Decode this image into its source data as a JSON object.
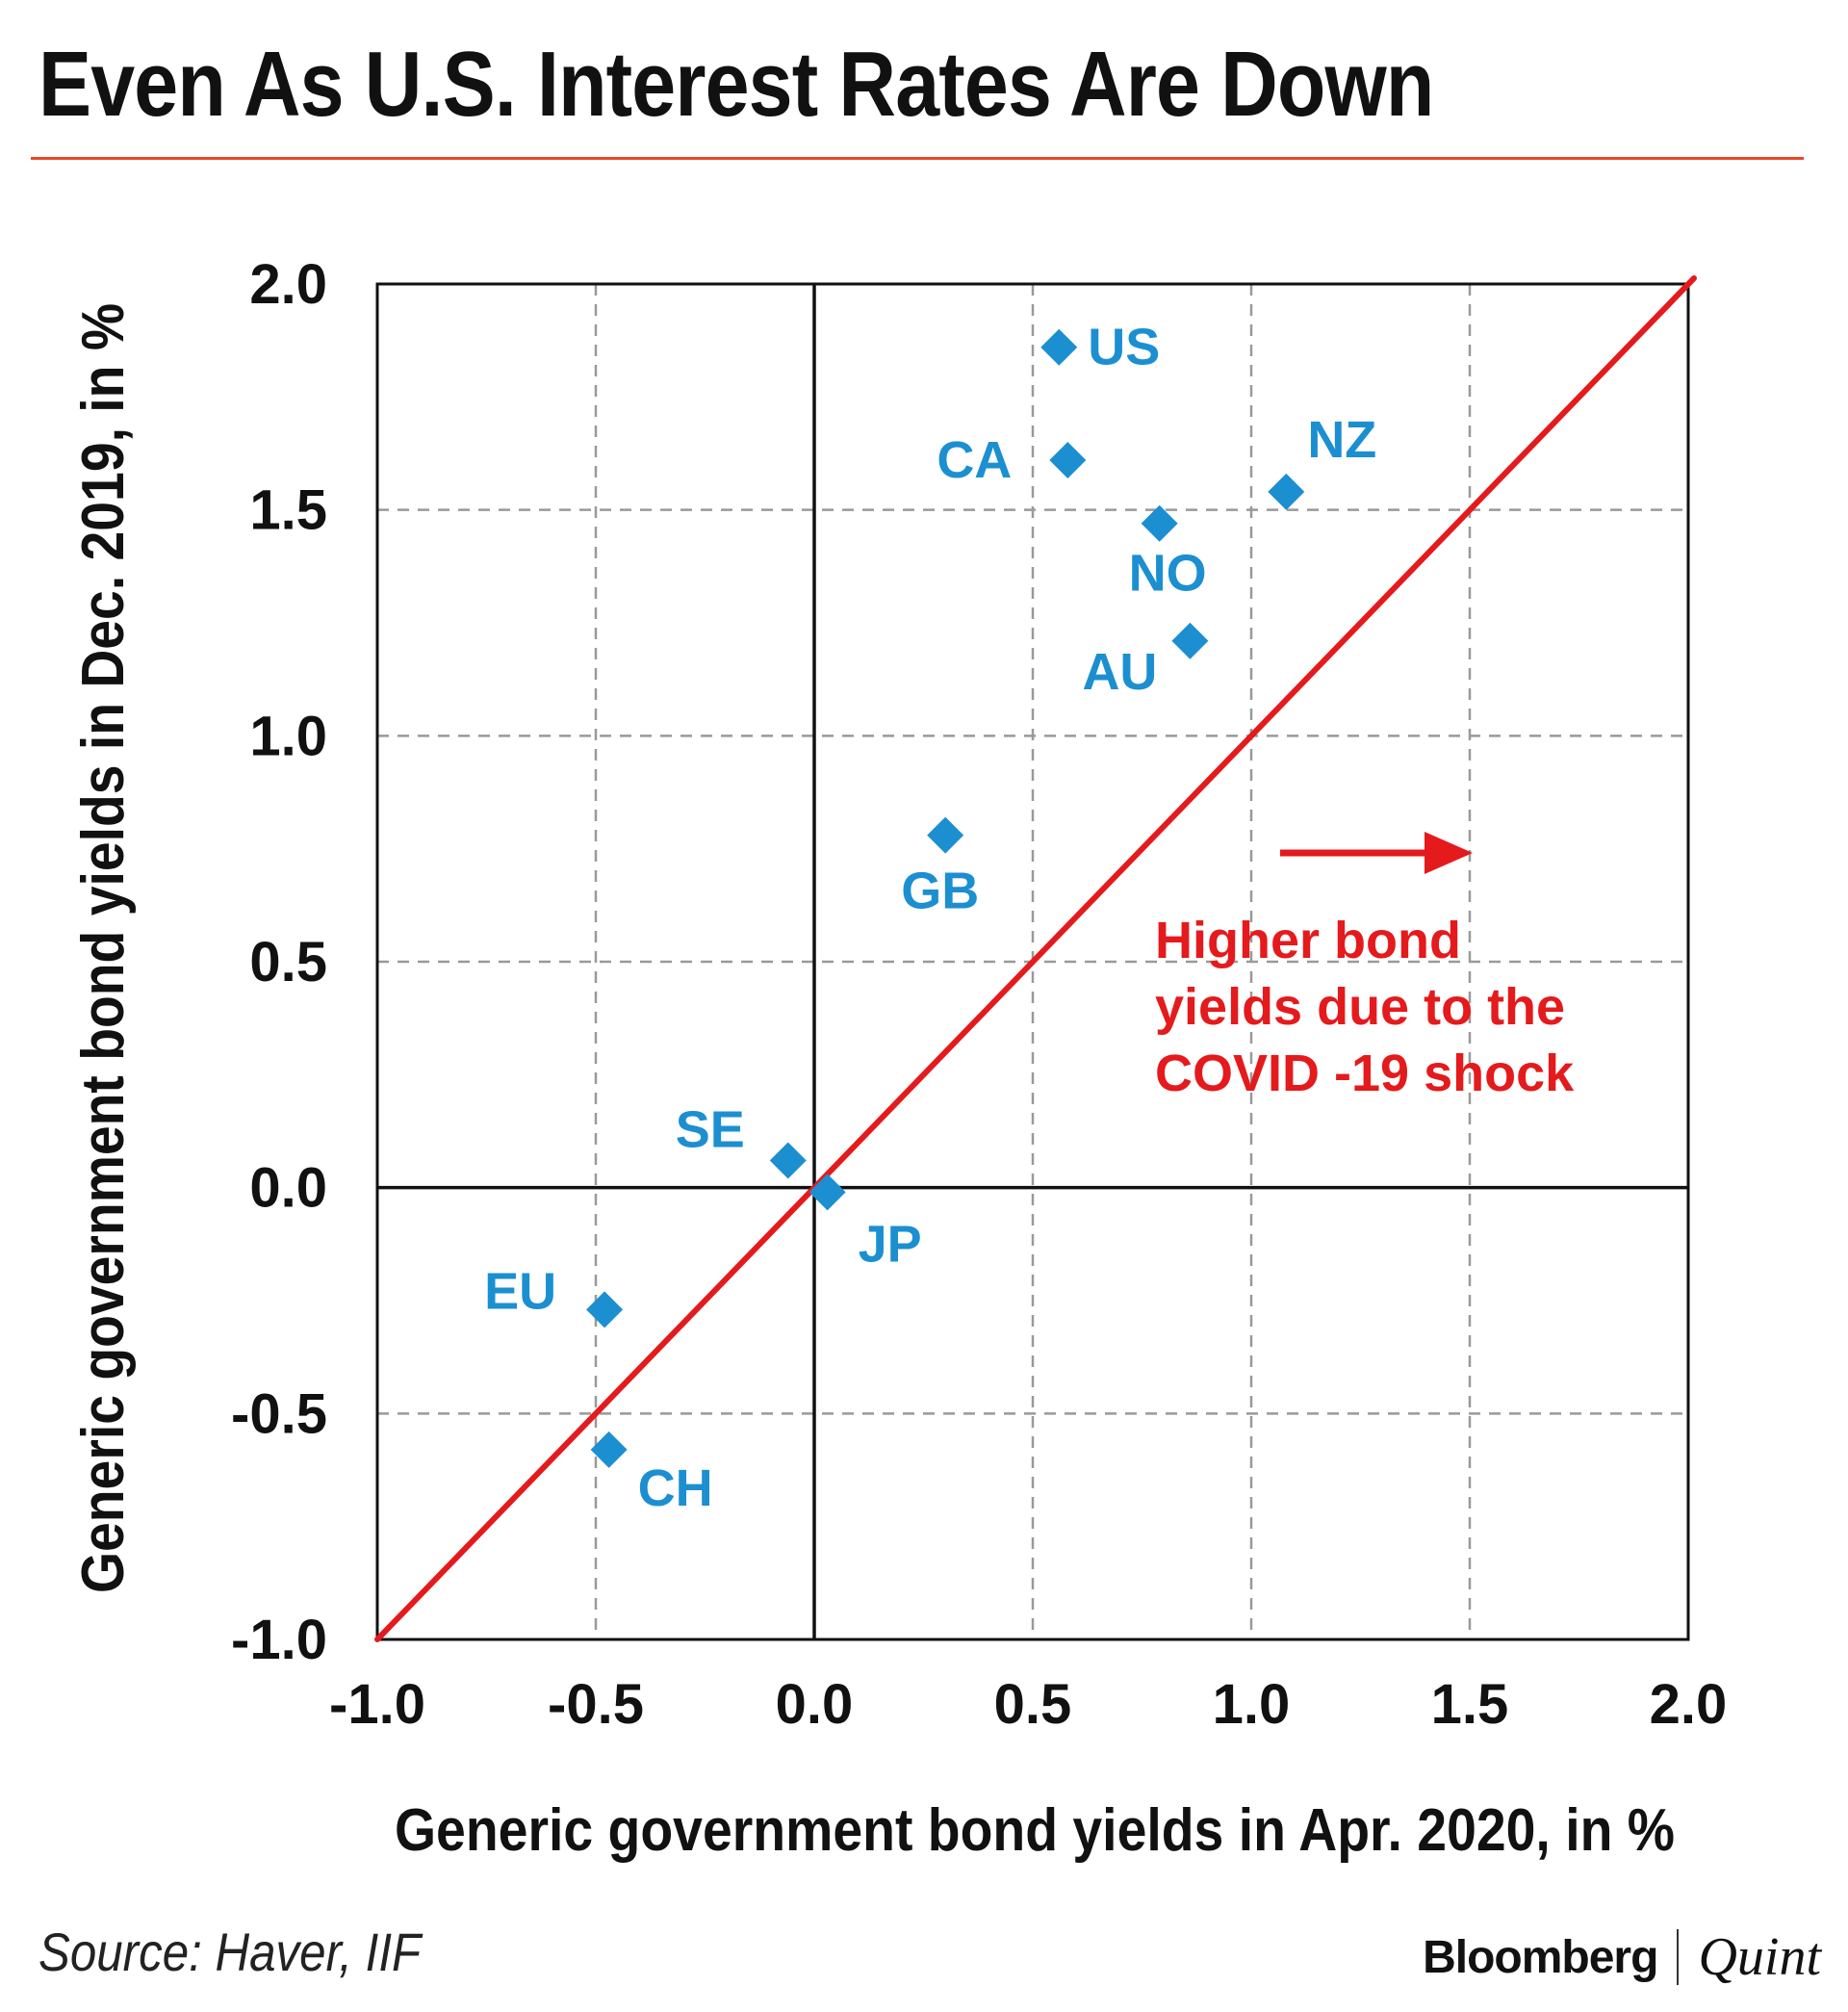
{
  "header": {
    "title": "Even As U.S. Interest Rates Are Down"
  },
  "chart_data": {
    "type": "scatter",
    "title": "Even As U.S. Interest Rates Are Down",
    "xlabel": "Generic government bond yields in Apr. 2020, in %",
    "ylabel": "Generic government bond yields in Dec. 2019, in %",
    "xlim": [
      -1.0,
      2.0
    ],
    "ylim": [
      -1.0,
      2.0
    ],
    "xticks": [
      "-1.0",
      "-0.5",
      "0.0",
      "0.5",
      "1.0",
      "1.5",
      "2.0"
    ],
    "yticks": [
      "-1.0",
      "-0.5",
      "0.0",
      "0.5",
      "1.0",
      "1.5",
      "2.0"
    ],
    "grid": true,
    "reference_line": {
      "label": "45-degree line",
      "from": [
        -1.0,
        -1.0
      ],
      "to": [
        2.0,
        2.0
      ],
      "color": "#e41a1c"
    },
    "series": [
      {
        "name": "Countries",
        "color": "#1c8fd1",
        "points": [
          {
            "label": "US",
            "x": 0.56,
            "y": 1.86
          },
          {
            "label": "CA",
            "x": 0.58,
            "y": 1.61
          },
          {
            "label": "NZ",
            "x": 1.08,
            "y": 1.54
          },
          {
            "label": "NO",
            "x": 0.79,
            "y": 1.47
          },
          {
            "label": "AU",
            "x": 0.86,
            "y": 1.21
          },
          {
            "label": "GB",
            "x": 0.3,
            "y": 0.78
          },
          {
            "label": "SE",
            "x": -0.06,
            "y": 0.06
          },
          {
            "label": "JP",
            "x": 0.03,
            "y": -0.01
          },
          {
            "label": "EU",
            "x": -0.48,
            "y": -0.27
          },
          {
            "label": "CH",
            "x": -0.47,
            "y": -0.58
          }
        ]
      }
    ],
    "annotation": {
      "lines": [
        "Higher bond",
        "yields due to the",
        "COVID   -19 shock"
      ],
      "arrow": "right",
      "color": "#e41a1c"
    }
  },
  "footer": {
    "source": "Source: Haver, IIF",
    "brand_primary": "Bloomberg",
    "brand_secondary": "Quint"
  }
}
